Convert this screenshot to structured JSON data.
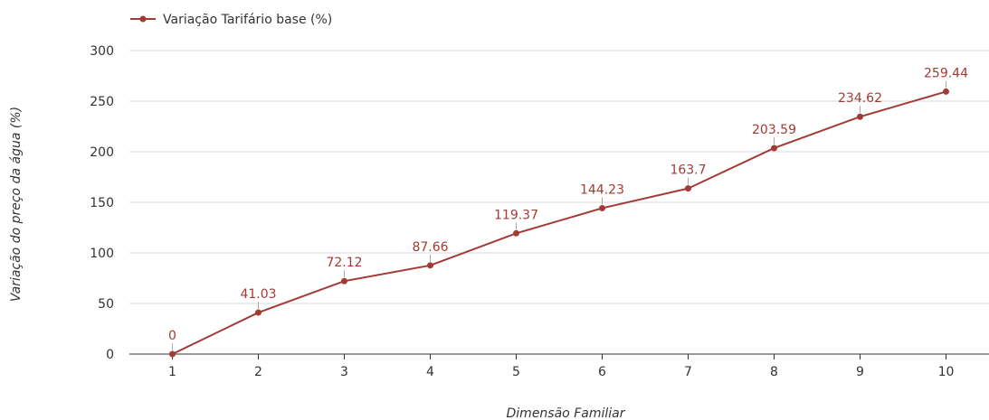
{
  "chart_data": {
    "type": "line",
    "title": "",
    "xlabel": "Dimensão Familiar",
    "ylabel": "Variação do preço da água (%)",
    "categories": [
      "1",
      "2",
      "3",
      "4",
      "5",
      "6",
      "7",
      "8",
      "9",
      "10"
    ],
    "series": [
      {
        "name": "Variação Tarifário base (%)",
        "values": [
          0,
          41.03,
          72.12,
          87.66,
          119.37,
          144.23,
          163.7,
          203.59,
          234.62,
          259.44
        ],
        "labels": [
          "0",
          "41.03",
          "72.12",
          "87.66",
          "119.37",
          "144.23",
          "163.7",
          "203.59",
          "234.62",
          "259.44"
        ],
        "color": "#a23b33"
      }
    ],
    "ylim": [
      0,
      300
    ],
    "yticks": [
      "0",
      "50",
      "100",
      "150",
      "200",
      "250",
      "300"
    ],
    "grid": true,
    "legend": "top-left"
  }
}
